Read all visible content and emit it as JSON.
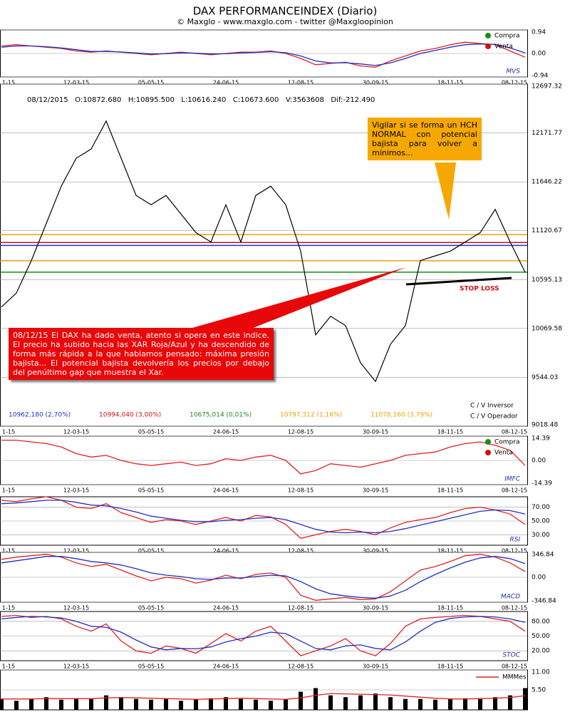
{
  "chart_data": [
    {
      "type": "line",
      "label": "MVS",
      "categories": [
        "1-15",
        null,
        null,
        null,
        null,
        "12-03-15",
        null,
        null,
        null,
        null,
        "05-05-15",
        null,
        null,
        null,
        null,
        "24-06-15",
        null,
        null,
        null,
        null,
        "12-08-15",
        null,
        null,
        null,
        null,
        "30-09-15",
        null,
        null,
        null,
        null,
        "18-11-15",
        null,
        null,
        null,
        null,
        "08-12-15"
      ],
      "ylim": [
        -0.94,
        0.94
      ],
      "yticks": [
        -0.94,
        {
          "value": 0,
          "label": "0.00"
        },
        0.94
      ],
      "legend_items": [
        {
          "label": "Compra",
          "color": "#1a8a1a"
        },
        {
          "label": "Venta",
          "color": "#d01010"
        }
      ],
      "series": [
        {
          "color": "#e02020",
          "values": [
            0.3,
            0.35,
            0.3,
            0.25,
            0.2,
            0.1,
            0.05,
            0.1,
            0.05,
            0,
            -0.05,
            0,
            0.05,
            0,
            -0.05,
            0,
            0.05,
            0.05,
            0.1,
            0,
            -0.2,
            -0.45,
            -0.4,
            -0.35,
            -0.5,
            -0.55,
            -0.3,
            -0.1,
            0.1,
            0.2,
            0.35,
            0.45,
            0.4,
            0.35,
            0.1,
            -0.15
          ]
        },
        {
          "color": "#2030c0",
          "values": [
            0.25,
            0.3,
            0.3,
            0.27,
            0.22,
            0.15,
            0.08,
            0.08,
            0.06,
            0.02,
            -0.02,
            -0.01,
            0.02,
            0.01,
            -0.02,
            -0.01,
            0.02,
            0.04,
            0.07,
            0.03,
            -0.1,
            -0.3,
            -0.38,
            -0.37,
            -0.42,
            -0.48,
            -0.38,
            -0.2,
            0,
            0.12,
            0.25,
            0.35,
            0.38,
            0.36,
            0.22,
            0.02
          ]
        }
      ]
    },
    {
      "type": "line",
      "title": "DAX PERFORMANCEINDEX (Diario)",
      "subtitle": "© Maxglo - www.maxglo.com - twitter @Maxgloopinion",
      "ohlc_text": "08/12/2015   O:10872.680   H:10895.500   L:10616.240   C:10673.600   V:3563608   Dif:-212.490",
      "categories": [
        "1-15",
        null,
        null,
        null,
        null,
        "12-03-15",
        null,
        null,
        null,
        null,
        "05-05-15",
        null,
        null,
        null,
        null,
        "24-06-15",
        null,
        null,
        null,
        null,
        "12-08-15",
        null,
        null,
        null,
        null,
        "30-09-15",
        null,
        null,
        null,
        null,
        "18-11-15",
        null,
        null,
        null,
        null,
        "08-12-15"
      ],
      "ylim": [
        9018.48,
        12697.32
      ],
      "yticks": [
        9018.48,
        9544.03,
        10069.58,
        10595.13,
        11120.67,
        11646.22,
        12171.77,
        12697.32
      ],
      "series": [
        {
          "color": "#000000",
          "values": [
            10300,
            10450,
            10800,
            11200,
            11600,
            11900,
            12000,
            12300,
            11900,
            11500,
            11400,
            11500,
            11300,
            11100,
            11000,
            11400,
            11000,
            11500,
            11600,
            11400,
            10900,
            10000,
            10200,
            10100,
            9700,
            9500,
            9900,
            10100,
            10800,
            10850,
            10900,
            11000,
            11100,
            11350,
            11000,
            10673.6
          ]
        }
      ],
      "levels": [
        {
          "label": "10962,180 (2,70%)",
          "value": 10962.18,
          "color": "#2030c0"
        },
        {
          "label": "10994,040 (3,00%)",
          "value": 10994.04,
          "color": "#d01010"
        },
        {
          "label": "10675,014 (0,01%)",
          "value": 10675.014,
          "color": "#1a8a1a"
        },
        {
          "label": "10797,312 (1,16%)",
          "value": 10797.312,
          "color": "#f0a000"
        },
        {
          "label": "11078,160 (3,79%)",
          "value": 11078.16,
          "color": "#f0a000"
        }
      ],
      "callout_yellow": "Vigilar si se forma un HCH NORMAL con potencial bajista para volver a mínimos...",
      "callout_red": "08/12/15 El DAX ha dado venta, atento si opera en este indice. El precio ha subido hacia las XAR Roja/Azul y ha descendido de forma más rápida a la que habiamos pensado: máxima presión bajista... El potencial bajista devolvería los precios por debajo del penúltimo gap que muestra el Xar.",
      "stop_loss": "STOP LOSS",
      "legend_inversor": "C / V Inversor",
      "legend_operador": "C / V Operador"
    },
    {
      "type": "line",
      "label": "IMFC",
      "categories": [
        "1-15",
        null,
        null,
        null,
        null,
        "12-03-15",
        null,
        null,
        null,
        null,
        "05-05-15",
        null,
        null,
        null,
        null,
        "24-06-15",
        null,
        null,
        null,
        null,
        "12-08-15",
        null,
        null,
        null,
        null,
        "30-09-15",
        null,
        null,
        null,
        null,
        "18-11-15",
        null,
        null,
        null,
        null,
        "08-12-15"
      ],
      "ylim": [
        -14.39,
        14.39
      ],
      "yticks": [
        -14.39,
        {
          "value": 0,
          "label": "0.00"
        },
        14.39
      ],
      "legend_items": [
        {
          "label": "Compra",
          "color": "#1a8a1a"
        },
        {
          "label": "Venta",
          "color": "#d01010"
        }
      ],
      "series": [
        {
          "color": "#e02020",
          "values": [
            12,
            12,
            11,
            10,
            8,
            4,
            2,
            3,
            0,
            -2,
            -3,
            -2,
            -1,
            -3,
            -2,
            1,
            0,
            2,
            3,
            0,
            -8,
            -6,
            -2,
            -3,
            -4,
            -2,
            0,
            3,
            4,
            5,
            8,
            10,
            11,
            9,
            6,
            -3
          ]
        }
      ]
    },
    {
      "type": "line",
      "label": "RSI",
      "categories": [
        "1-15",
        null,
        null,
        null,
        null,
        "12-03-15",
        null,
        null,
        null,
        null,
        "05-05-15",
        null,
        null,
        null,
        null,
        "24-06-15",
        null,
        null,
        null,
        null,
        "12-08-15",
        null,
        null,
        null,
        null,
        "30-09-15",
        null,
        null,
        null,
        null,
        "18-11-15",
        null,
        null,
        null,
        null,
        "08-12-15"
      ],
      "ylim": [
        15,
        85
      ],
      "yticks": [
        {
          "value": 30,
          "label": "30.00"
        },
        {
          "value": 50,
          "label": "50.00"
        },
        {
          "value": 70,
          "label": "70.00"
        }
      ],
      "series": [
        {
          "color": "#e02020",
          "values": [
            80,
            78,
            82,
            85,
            80,
            70,
            68,
            75,
            62,
            55,
            48,
            52,
            50,
            45,
            50,
            55,
            50,
            58,
            56,
            45,
            25,
            30,
            35,
            38,
            35,
            30,
            40,
            48,
            52,
            55,
            62,
            68,
            70,
            66,
            60,
            45
          ]
        },
        {
          "color": "#2030c0",
          "values": [
            75,
            76,
            78,
            80,
            80,
            77,
            73,
            72,
            68,
            63,
            57,
            54,
            51,
            49,
            49,
            51,
            52,
            54,
            55,
            52,
            45,
            38,
            34,
            33,
            34,
            33,
            35,
            39,
            44,
            49,
            54,
            59,
            64,
            66,
            65,
            60
          ]
        }
      ]
    },
    {
      "type": "line",
      "label": "MACD",
      "categories": [
        "1-15",
        null,
        null,
        null,
        null,
        "12-03-15",
        null,
        null,
        null,
        null,
        "05-05-15",
        null,
        null,
        null,
        null,
        "24-06-15",
        null,
        null,
        null,
        null,
        "12-08-15",
        null,
        null,
        null,
        null,
        "30-09-15",
        null,
        null,
        null,
        null,
        "18-11-15",
        null,
        null,
        null,
        null,
        "08-12-15"
      ],
      "ylim": [
        -346.84,
        346.84
      ],
      "yticks": [
        -346.84,
        {
          "value": 0,
          "label": "0.00"
        },
        346.84
      ],
      "series": [
        {
          "color": "#e02020",
          "values": [
            250,
            280,
            300,
            320,
            280,
            200,
            150,
            180,
            100,
            20,
            -50,
            0,
            -20,
            -80,
            -40,
            30,
            -20,
            40,
            60,
            0,
            -250,
            -320,
            -300,
            -280,
            -310,
            -300,
            -200,
            -50,
            100,
            150,
            220,
            300,
            320,
            280,
            200,
            80
          ]
        },
        {
          "color": "#2030c0",
          "values": [
            200,
            230,
            260,
            290,
            290,
            260,
            220,
            200,
            170,
            120,
            60,
            30,
            10,
            -20,
            -30,
            -10,
            -10,
            10,
            30,
            20,
            -60,
            -160,
            -230,
            -260,
            -280,
            -290,
            -260,
            -180,
            -60,
            40,
            130,
            210,
            270,
            290,
            260,
            190
          ]
        }
      ]
    },
    {
      "type": "line",
      "label": "STOC",
      "categories": [
        "1-15",
        null,
        null,
        null,
        null,
        "12-03-15",
        null,
        null,
        null,
        null,
        "05-05-15",
        null,
        null,
        null,
        null,
        "24-06-15",
        null,
        null,
        null,
        null,
        "12-08-15",
        null,
        null,
        null,
        null,
        "30-09-15",
        null,
        null,
        null,
        null,
        "18-11-15",
        null,
        null,
        null,
        null,
        "08-12-15"
      ],
      "ylim": [
        0,
        100
      ],
      "yticks": [
        {
          "value": 20,
          "label": "20.00"
        },
        {
          "value": 50,
          "label": "50.00"
        },
        {
          "value": 80,
          "label": "80.00"
        }
      ],
      "series": [
        {
          "color": "#e02020",
          "values": [
            90,
            92,
            88,
            90,
            85,
            70,
            60,
            75,
            40,
            20,
            15,
            30,
            25,
            15,
            35,
            55,
            40,
            60,
            70,
            40,
            10,
            20,
            30,
            45,
            20,
            10,
            35,
            70,
            85,
            88,
            90,
            92,
            90,
            85,
            80,
            60
          ]
        },
        {
          "color": "#2030c0",
          "values": [
            85,
            88,
            90,
            89,
            87,
            80,
            70,
            68,
            58,
            42,
            28,
            22,
            25,
            24,
            28,
            38,
            45,
            50,
            58,
            55,
            40,
            25,
            22,
            30,
            32,
            25,
            22,
            38,
            60,
            78,
            86,
            89,
            90,
            89,
            85,
            78
          ]
        }
      ]
    },
    {
      "type": "bar",
      "categories": [
        "1-15",
        null,
        null,
        null,
        null,
        "12-03-15",
        null,
        null,
        null,
        null,
        "05-05-15",
        null,
        null,
        null,
        null,
        "24-06-15",
        null,
        null,
        null,
        null,
        "12-08-15",
        null,
        null,
        null,
        null,
        "30-09-15",
        null,
        null,
        null,
        null,
        "18-11-15",
        null,
        null,
        null,
        null,
        "08-12-15"
      ],
      "ylim": [
        0,
        11
      ],
      "yticks": [
        {
          "value": 5.5,
          "label": "5.50"
        },
        {
          "value": 11,
          "label": "11.00"
        }
      ],
      "color": "#000000",
      "values": [
        3,
        2.5,
        3,
        3.5,
        2.8,
        3.2,
        3,
        4,
        3.5,
        3,
        2.8,
        3,
        2.5,
        3,
        3.2,
        3.5,
        3,
        2.8,
        2.5,
        3,
        5,
        6,
        4,
        3.5,
        4,
        4.5,
        3.5,
        3,
        3,
        2.8,
        3,
        3.2,
        3,
        3.5,
        4,
        6
      ],
      "series": [
        {
          "name": "MMMes",
          "color": "#e02020",
          "values": [
            3,
            3,
            3,
            3.1,
            3.1,
            3.1,
            3.1,
            3.3,
            3.4,
            3.3,
            3.2,
            3.1,
            3,
            2.9,
            3,
            3.1,
            3.2,
            3.1,
            3,
            2.9,
            3.3,
            4,
            4.5,
            4.4,
            4.3,
            4.2,
            4.1,
            3.8,
            3.5,
            3.2,
            3,
            3,
            3.1,
            3.2,
            3.4,
            3.9
          ]
        }
      ]
    }
  ]
}
